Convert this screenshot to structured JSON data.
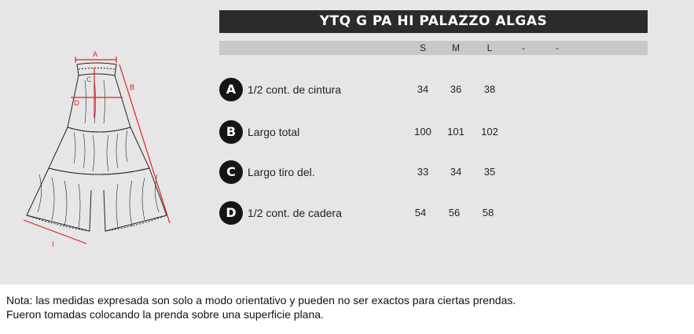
{
  "title": "YTQ G PA HI PALAZZO ALGAS",
  "sizes": [
    "S",
    "M",
    "L",
    "-",
    "-"
  ],
  "diagram": {
    "labels": [
      "A",
      "B",
      "C",
      "D",
      "I"
    ]
  },
  "measurements": [
    {
      "badge": "A",
      "label": "1/2 cont. de cintura",
      "values": [
        "34",
        "36",
        "38"
      ]
    },
    {
      "badge": "B",
      "label": "Largo total",
      "values": [
        "100",
        "101",
        "102"
      ]
    },
    {
      "badge": "C",
      "label": "Largo tiro del.",
      "values": [
        "33",
        "34",
        "35"
      ]
    },
    {
      "badge": "D",
      "label": "1/2 cont. de cadera",
      "values": [
        "54",
        "56",
        "58"
      ]
    }
  ],
  "note": {
    "line1": "Nota: las medidas expresada son solo a modo orientativo y pueden no ser exactos para ciertas prendas.",
    "line2": "Fueron tomadas colocando la prenda sobre una superficie plana."
  },
  "colors": {
    "panel": "#e6e6e6",
    "title_bar": "#2b2b2b",
    "size_bar": "#c8c8c8",
    "badge": "#151515",
    "measure_line": "#e0202a"
  }
}
